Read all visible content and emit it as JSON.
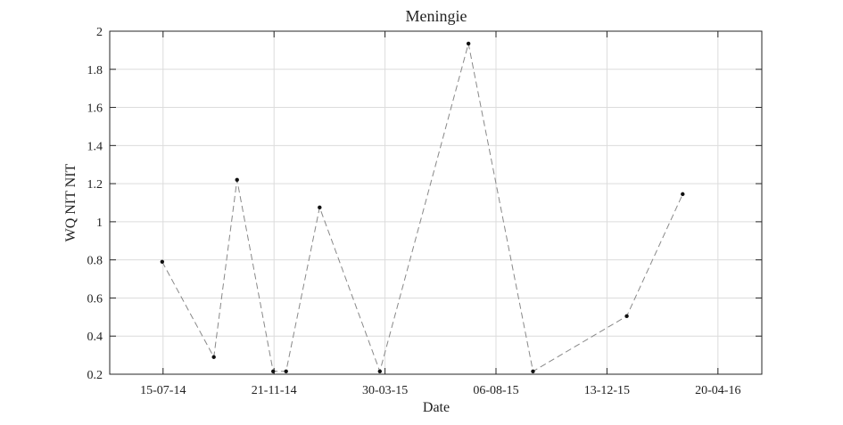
{
  "chart_data": {
    "type": "line",
    "title": "Meningie",
    "xlabel": "Date",
    "ylabel": "WQ NIT NIT",
    "xlim": [
      "2014-05-14",
      "2016-06-10"
    ],
    "ylim": [
      0.2,
      2.0
    ],
    "x_ticks": [
      {
        "date": "2014-07-15",
        "label": "15-07-14"
      },
      {
        "date": "2014-11-21",
        "label": "21-11-14"
      },
      {
        "date": "2015-03-30",
        "label": "30-03-15"
      },
      {
        "date": "2015-08-06",
        "label": "06-08-15"
      },
      {
        "date": "2015-12-13",
        "label": "13-12-15"
      },
      {
        "date": "2016-04-20",
        "label": "20-04-16"
      }
    ],
    "y_ticks": [
      0.2,
      0.4,
      0.6,
      0.8,
      1.0,
      1.2,
      1.4,
      1.6,
      1.8,
      2.0
    ],
    "y_tick_labels": [
      "0.2",
      "0.4",
      "0.6",
      "0.8",
      "1",
      "1.2",
      "1.4",
      "1.6",
      "1.8",
      "2"
    ],
    "grid": true,
    "series": [
      {
        "line_style": "dashed",
        "line_color": "#888888",
        "marker_color": "#111111",
        "points": [
          {
            "x": "2014-07-14",
            "y": 0.79
          },
          {
            "x": "2014-09-12",
            "y": 0.29
          },
          {
            "x": "2014-10-09",
            "y": 1.22
          },
          {
            "x": "2014-11-20",
            "y": 0.215
          },
          {
            "x": "2014-12-05",
            "y": 0.215
          },
          {
            "x": "2015-01-13",
            "y": 1.075
          },
          {
            "x": "2015-03-24",
            "y": 0.215
          },
          {
            "x": "2015-07-05",
            "y": 1.935
          },
          {
            "x": "2015-09-18",
            "y": 0.215
          },
          {
            "x": "2016-01-05",
            "y": 0.505
          },
          {
            "x": "2016-03-10",
            "y": 1.145
          }
        ]
      }
    ]
  }
}
